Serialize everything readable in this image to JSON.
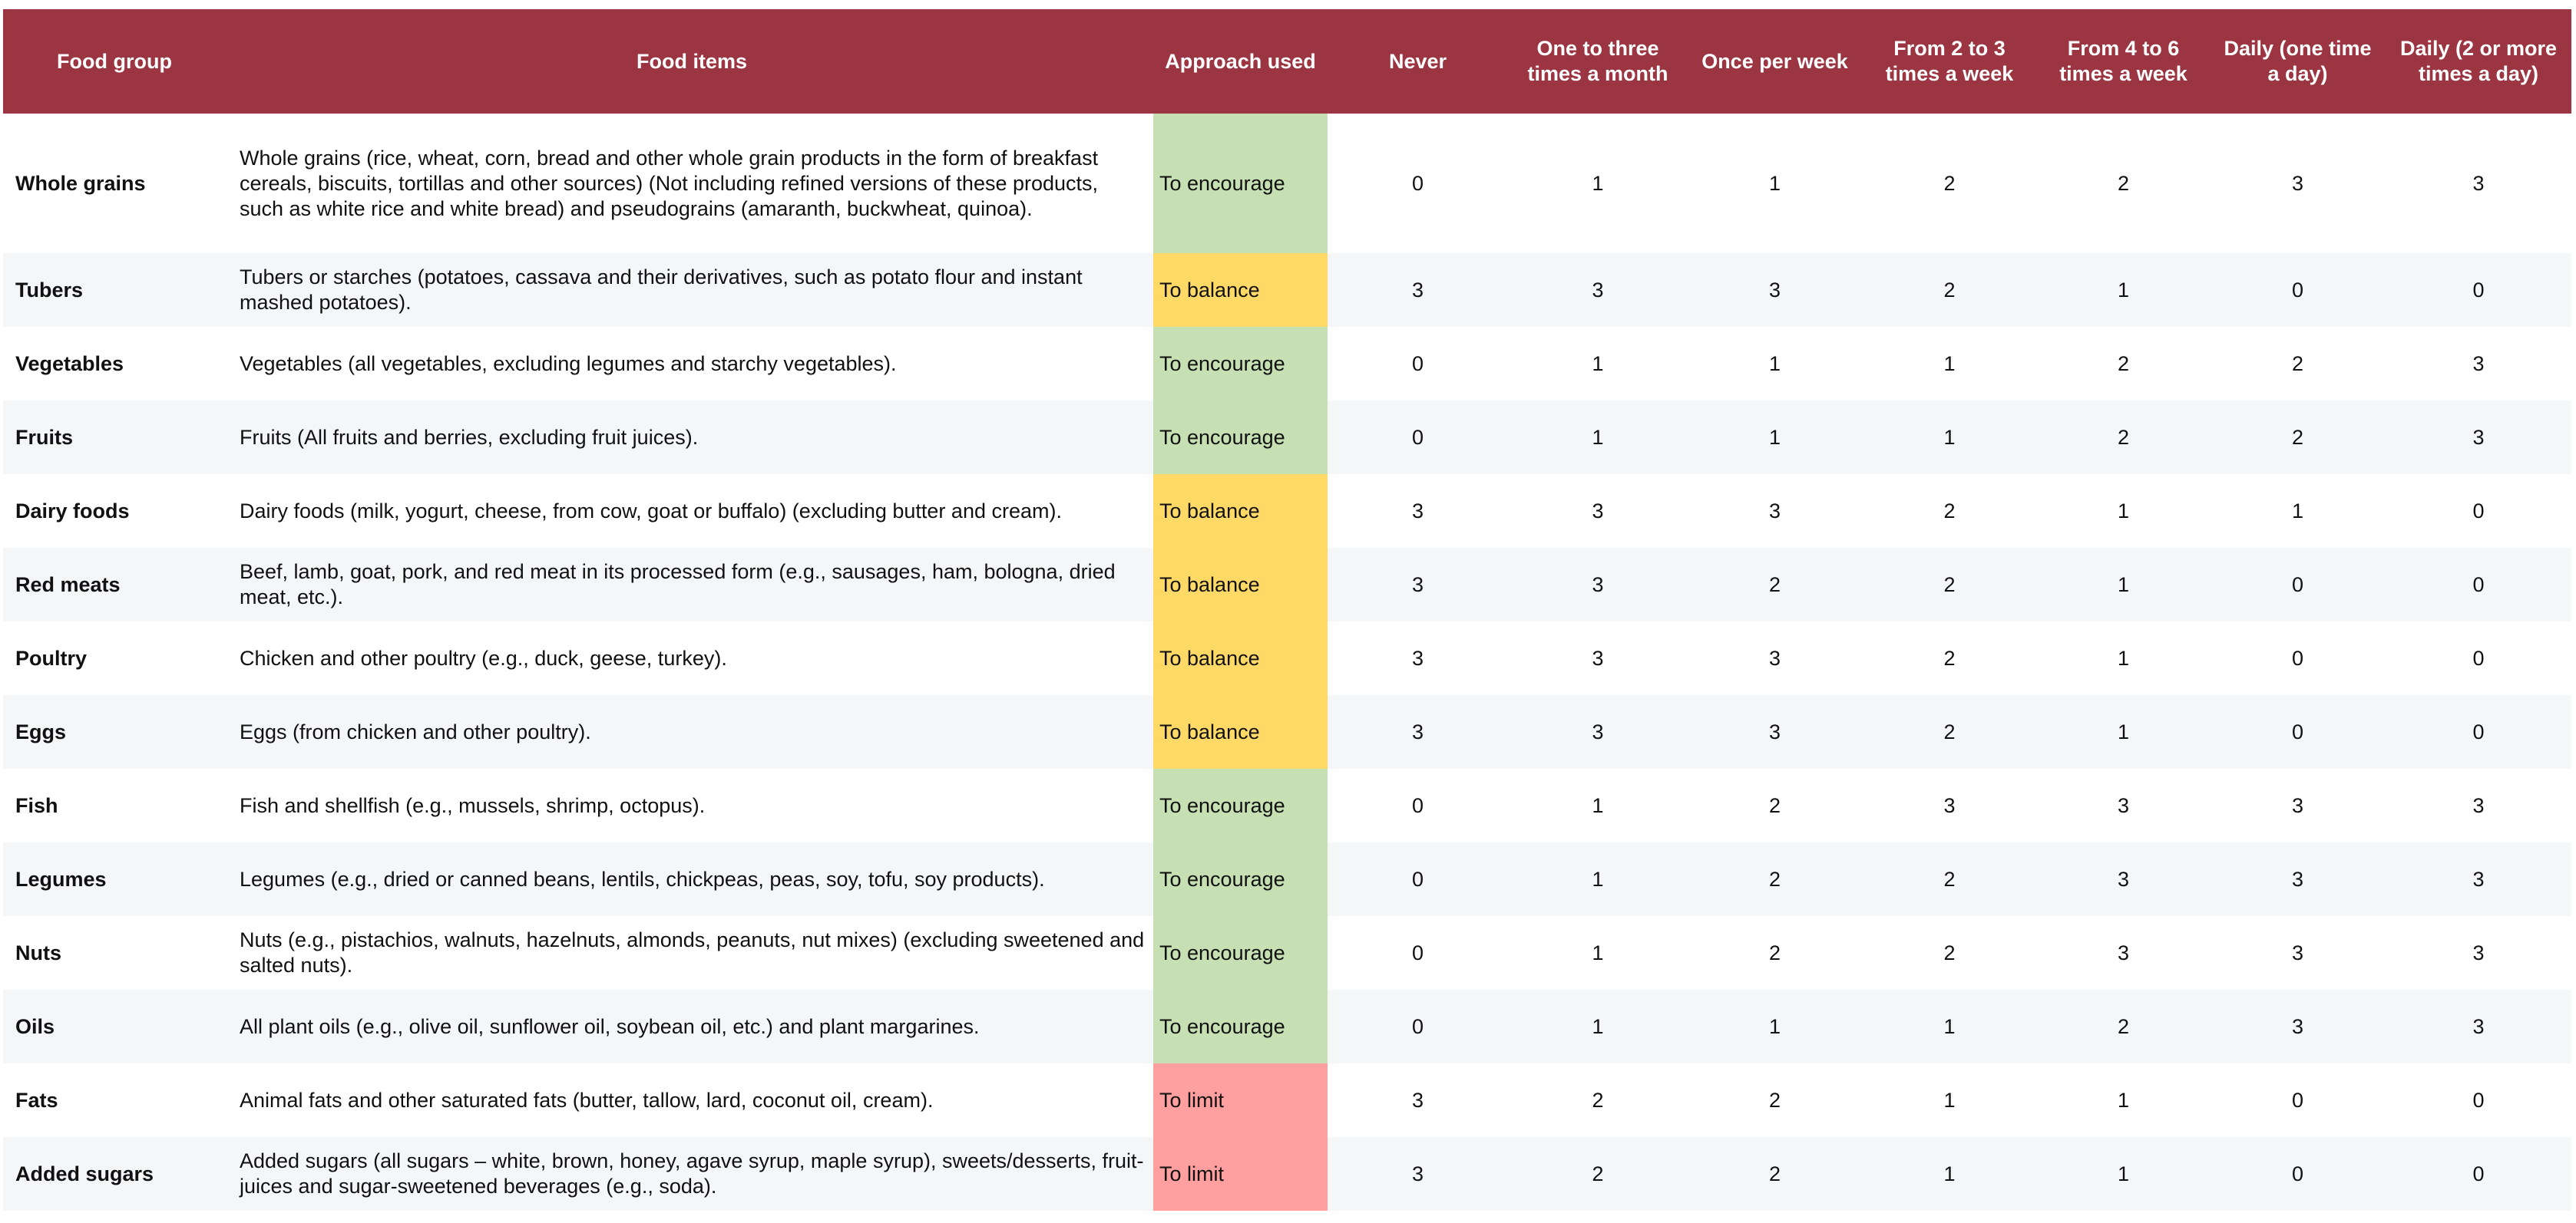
{
  "colors": {
    "header": "#9B3542",
    "encourage": "#C6E0B4",
    "balance": "#FFD966",
    "limit": "#FF9F9F"
  },
  "headers": [
    "Food group",
    "Food items",
    "Approach used",
    "Never",
    "One to three times a month",
    "Once per week",
    "From 2 to 3 times a week",
    "From 4 to 6 times a week",
    "Daily (one time a day)",
    "Daily (2 or more times a day)"
  ],
  "rows": [
    {
      "group": "Whole grains",
      "items": "Whole grains (rice, wheat, corn, bread and other whole grain products in the form of breakfast cereals, biscuits, tortillas and other sources) (Not including refined versions of these products, such as white rice and white bread) and pseudograins (amaranth, buckwheat, quinoa).",
      "approach": "To encourage",
      "type": "encourage",
      "scores": [
        0,
        1,
        1,
        2,
        2,
        3,
        3
      ]
    },
    {
      "group": "Tubers",
      "items": "Tubers or starches (potatoes, cassava and their derivatives, such as potato flour and instant mashed potatoes).",
      "approach": "To balance",
      "type": "balance",
      "scores": [
        3,
        3,
        3,
        2,
        1,
        0,
        0
      ]
    },
    {
      "group": "Vegetables",
      "items": "Vegetables (all vegetables, excluding legumes and starchy vegetables).",
      "approach": "To encourage",
      "type": "encourage",
      "scores": [
        0,
        1,
        1,
        1,
        2,
        2,
        3
      ]
    },
    {
      "group": "Fruits",
      "items": "Fruits (All fruits and berries, excluding fruit juices).",
      "approach": "To encourage",
      "type": "encourage",
      "scores": [
        0,
        1,
        1,
        1,
        2,
        2,
        3
      ]
    },
    {
      "group": "Dairy foods",
      "items": "Dairy foods (milk, yogurt, cheese, from cow, goat or buffalo) (excluding butter and cream).",
      "approach": "To balance",
      "type": "balance",
      "scores": [
        3,
        3,
        3,
        2,
        1,
        1,
        0
      ]
    },
    {
      "group": "Red meats",
      "items": "Beef, lamb, goat, pork, and red meat in its processed form (e.g., sausages, ham, bologna, dried meat, etc.).",
      "approach": "To balance",
      "type": "balance",
      "scores": [
        3,
        3,
        2,
        2,
        1,
        0,
        0
      ]
    },
    {
      "group": "Poultry",
      "items": "Chicken and other poultry (e.g., duck, geese, turkey).",
      "approach": "To balance",
      "type": "balance",
      "scores": [
        3,
        3,
        3,
        2,
        1,
        0,
        0
      ]
    },
    {
      "group": "Eggs",
      "items": "Eggs (from chicken and other poultry).",
      "approach": "To balance",
      "type": "balance",
      "scores": [
        3,
        3,
        3,
        2,
        1,
        0,
        0
      ]
    },
    {
      "group": "Fish",
      "items": "Fish and shellfish (e.g., mussels, shrimp, octopus).",
      "approach": "To encourage",
      "type": "encourage",
      "scores": [
        0,
        1,
        2,
        3,
        3,
        3,
        3
      ]
    },
    {
      "group": "Legumes",
      "items": "Legumes (e.g., dried or canned beans, lentils, chickpeas, peas, soy, tofu, soy products).",
      "approach": "To encourage",
      "type": "encourage",
      "scores": [
        0,
        1,
        2,
        2,
        3,
        3,
        3
      ]
    },
    {
      "group": "Nuts",
      "items": "Nuts (e.g., pistachios, walnuts, hazelnuts, almonds, peanuts, nut mixes) (excluding sweetened and salted nuts).",
      "approach": "To encourage",
      "type": "encourage",
      "scores": [
        0,
        1,
        2,
        2,
        3,
        3,
        3
      ]
    },
    {
      "group": "Oils",
      "items": "All plant oils (e.g., olive oil, sunflower oil, soybean oil, etc.) and plant margarines.",
      "approach": "To encourage",
      "type": "encourage",
      "scores": [
        0,
        1,
        1,
        1,
        2,
        3,
        3
      ]
    },
    {
      "group": "Fats",
      "items": "Animal fats and other saturated fats (butter, tallow, lard, coconut oil, cream).",
      "approach": "To limit",
      "type": "limit",
      "scores": [
        3,
        2,
        2,
        1,
        1,
        0,
        0
      ]
    },
    {
      "group": "Added sugars",
      "items": "Added sugars (all sugars – white, brown, honey, agave syrup, maple syrup), sweets/desserts, fruit-juices and sugar-sweetened beverages (e.g., soda).",
      "approach": "To limit",
      "type": "limit",
      "scores": [
        3,
        2,
        2,
        1,
        1,
        0,
        0
      ]
    }
  ]
}
